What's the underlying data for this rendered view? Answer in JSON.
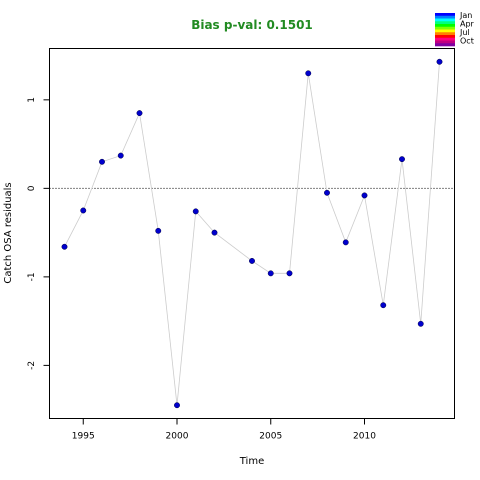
{
  "chart_data": {
    "type": "scatter",
    "title": "Bias p-val: 0.1501",
    "title_color": "#228B22",
    "xlabel": "Time",
    "ylabel": "Catch OSA residuals",
    "xlim": [
      1993.2,
      2014.8
    ],
    "ylim": [
      -2.6,
      1.58
    ],
    "xticks": [
      1995,
      2000,
      2005,
      2010
    ],
    "yticks": [
      -2,
      -1,
      0,
      1
    ],
    "reference_line": 0,
    "grid": false,
    "line_color": "#cccccc",
    "point_color": "#0000CD",
    "legend_position": "top-right",
    "legend_labels": [
      "Jan",
      "Apr",
      "Jul",
      "Oct"
    ],
    "legend_colors": [
      "#0000FF",
      "#0080FF",
      "#00FFFF",
      "#00FF80",
      "#00FF00",
      "#80FF00",
      "#FFFF00",
      "#FF8000",
      "#FF0000",
      "#FF0080",
      "#C00080",
      "#8000A0"
    ],
    "x": [
      1994,
      1995,
      1996,
      1997,
      1998,
      1999,
      2000,
      2001,
      2002,
      2004,
      2005,
      2006,
      2007,
      2008,
      2009,
      2010,
      2011,
      2012,
      2013,
      2014
    ],
    "y": [
      -0.66,
      -0.25,
      0.3,
      0.37,
      0.85,
      -0.48,
      -2.45,
      -0.26,
      -0.5,
      -0.82,
      -0.96,
      -0.96,
      1.3,
      -0.05,
      -0.61,
      -0.08,
      -1.32,
      0.33,
      -1.53,
      1.43
    ]
  }
}
